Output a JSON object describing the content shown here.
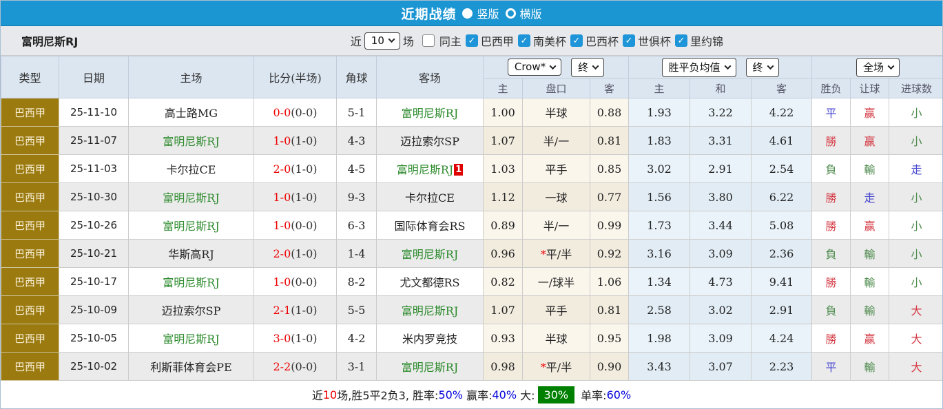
{
  "colors": {
    "topbar_blue": "#1b96d2",
    "checkbox_blue": "#1d95d8",
    "type_gold": "#9b7a10",
    "header_bg": "#dce6f1",
    "team_green": "#2e8b2e",
    "score_red": "#ee0000",
    "result_red": "#d53a44",
    "result_green": "#4e8b4e",
    "result_blue": "#4747cf",
    "big_rate_badge_bg": "#008000"
  },
  "topbar": {
    "title": "近期战绩",
    "vertical_label": "竖版",
    "horizontal_label": "横版",
    "selected": "竖版"
  },
  "filterbar": {
    "team_name": "富明尼斯RJ",
    "near_label": "近",
    "count_value": "10",
    "games_label": "场",
    "same_home_label": "同主",
    "same_home_checked": false,
    "competitions": [
      "巴西甲",
      "南美杯",
      "巴西杯",
      "世俱杯",
      "里约锦"
    ]
  },
  "table": {
    "dropdowns": {
      "company": "Crow*",
      "final1": "终",
      "avg": "胜平负均值",
      "final2": "终",
      "scope": "全场"
    },
    "columns": [
      "类型",
      "日期",
      "主场",
      "比分(半场)",
      "角球",
      "客场"
    ],
    "subcolumns": [
      "主",
      "盘口",
      "客",
      "主",
      "和",
      "客",
      "胜负",
      "让球",
      "进球数"
    ],
    "rows": [
      {
        "type": "巴西甲",
        "date": "25-11-10",
        "home": "高士路MG",
        "home_color": "black",
        "score": "0-0",
        "half": "(0-0)",
        "corners": "5-1",
        "away": "富明尼斯RJ",
        "away_color": "tgreen",
        "away_redcard": "",
        "odds_home": "1.00",
        "handicap_star": "",
        "handicap": "半球",
        "odds_away": "0.88",
        "avg_win": "1.93",
        "avg_draw": "3.22",
        "avg_lose": "4.22",
        "result": "平",
        "result_color": "blue",
        "let_result": "赢",
        "let_color": "red",
        "goals": "小",
        "goals_color": "green"
      },
      {
        "type": "巴西甲",
        "date": "25-11-07",
        "home": "富明尼斯RJ",
        "home_color": "tgreen",
        "score": "1-0",
        "half": "(1-0)",
        "corners": "4-3",
        "away": "迈拉索尔SP",
        "away_color": "black",
        "away_redcard": "",
        "odds_home": "1.07",
        "handicap_star": "",
        "handicap": "半/一",
        "odds_away": "0.81",
        "avg_win": "1.83",
        "avg_draw": "3.31",
        "avg_lose": "4.61",
        "result": "勝",
        "result_color": "red",
        "let_result": "赢",
        "let_color": "red",
        "goals": "小",
        "goals_color": "green"
      },
      {
        "type": "巴西甲",
        "date": "25-11-03",
        "home": "卡尔拉CE",
        "home_color": "black",
        "score": "2-0",
        "half": "(1-0)",
        "corners": "4-5",
        "away": "富明尼斯RJ",
        "away_color": "tgreen",
        "away_redcard": "1",
        "odds_home": "1.03",
        "handicap_star": "",
        "handicap": "平手",
        "odds_away": "0.85",
        "avg_win": "3.02",
        "avg_draw": "2.91",
        "avg_lose": "2.54",
        "result": "負",
        "result_color": "green",
        "let_result": "輸",
        "let_color": "green",
        "goals": "走",
        "goals_color": "blue"
      },
      {
        "type": "巴西甲",
        "date": "25-10-30",
        "home": "富明尼斯RJ",
        "home_color": "tgreen",
        "score": "1-0",
        "half": "(1-0)",
        "corners": "9-3",
        "away": "卡尔拉CE",
        "away_color": "black",
        "away_redcard": "",
        "odds_home": "1.12",
        "handicap_star": "",
        "handicap": "一球",
        "odds_away": "0.77",
        "avg_win": "1.56",
        "avg_draw": "3.80",
        "avg_lose": "6.22",
        "result": "勝",
        "result_color": "red",
        "let_result": "走",
        "let_color": "blue",
        "goals": "小",
        "goals_color": "green"
      },
      {
        "type": "巴西甲",
        "date": "25-10-26",
        "home": "富明尼斯RJ",
        "home_color": "tgreen",
        "score": "1-0",
        "half": "(0-0)",
        "corners": "6-3",
        "away": "国际体育会RS",
        "away_color": "black",
        "away_redcard": "",
        "odds_home": "0.89",
        "handicap_star": "",
        "handicap": "半/一",
        "odds_away": "0.99",
        "avg_win": "1.73",
        "avg_draw": "3.44",
        "avg_lose": "5.08",
        "result": "勝",
        "result_color": "red",
        "let_result": "赢",
        "let_color": "red",
        "goals": "小",
        "goals_color": "green"
      },
      {
        "type": "巴西甲",
        "date": "25-10-21",
        "home": "华斯高RJ",
        "home_color": "black",
        "score": "2-0",
        "half": "(1-0)",
        "corners": "1-4",
        "away": "富明尼斯RJ",
        "away_color": "tgreen",
        "away_redcard": "",
        "odds_home": "0.96",
        "handicap_star": "*",
        "handicap": "平/半",
        "odds_away": "0.92",
        "avg_win": "3.16",
        "avg_draw": "3.09",
        "avg_lose": "2.36",
        "result": "負",
        "result_color": "green",
        "let_result": "輸",
        "let_color": "green",
        "goals": "小",
        "goals_color": "green"
      },
      {
        "type": "巴西甲",
        "date": "25-10-17",
        "home": "富明尼斯RJ",
        "home_color": "tgreen",
        "score": "1-0",
        "half": "(0-0)",
        "corners": "8-2",
        "away": "尤文都德RS",
        "away_color": "black",
        "away_redcard": "",
        "odds_home": "0.82",
        "handicap_star": "",
        "handicap": "一/球半",
        "odds_away": "1.06",
        "avg_win": "1.34",
        "avg_draw": "4.73",
        "avg_lose": "9.41",
        "result": "勝",
        "result_color": "red",
        "let_result": "輸",
        "let_color": "green",
        "goals": "小",
        "goals_color": "green"
      },
      {
        "type": "巴西甲",
        "date": "25-10-09",
        "home": "迈拉索尔SP",
        "home_color": "black",
        "score": "2-1",
        "half": "(1-0)",
        "corners": "5-5",
        "away": "富明尼斯RJ",
        "away_color": "tgreen",
        "away_redcard": "",
        "odds_home": "1.07",
        "handicap_star": "",
        "handicap": "平手",
        "odds_away": "0.81",
        "avg_win": "2.58",
        "avg_draw": "3.02",
        "avg_lose": "2.91",
        "result": "負",
        "result_color": "green",
        "let_result": "輸",
        "let_color": "green",
        "goals": "大",
        "goals_color": "red"
      },
      {
        "type": "巴西甲",
        "date": "25-10-05",
        "home": "富明尼斯RJ",
        "home_color": "tgreen",
        "score": "3-0",
        "half": "(1-0)",
        "corners": "4-2",
        "away": "米内罗竞技",
        "away_color": "black",
        "away_redcard": "",
        "odds_home": "0.93",
        "handicap_star": "",
        "handicap": "半球",
        "odds_away": "0.95",
        "avg_win": "1.98",
        "avg_draw": "3.09",
        "avg_lose": "4.24",
        "result": "勝",
        "result_color": "red",
        "let_result": "赢",
        "let_color": "red",
        "goals": "大",
        "goals_color": "red"
      },
      {
        "type": "巴西甲",
        "date": "25-10-02",
        "home": "利斯菲体育会PE",
        "home_color": "black",
        "score": "2-2",
        "half": "(0-0)",
        "corners": "3-1",
        "away": "富明尼斯RJ",
        "away_color": "tgreen",
        "away_redcard": "",
        "odds_home": "0.98",
        "handicap_star": "*",
        "handicap": "平/半",
        "odds_away": "0.90",
        "avg_win": "3.43",
        "avg_draw": "3.07",
        "avg_lose": "2.23",
        "result": "平",
        "result_color": "blue",
        "let_result": "輸",
        "let_color": "green",
        "goals": "大",
        "goals_color": "red"
      }
    ]
  },
  "footer": {
    "segments": [
      {
        "text": "近",
        "style": "plain"
      },
      {
        "text": "10",
        "style": "red"
      },
      {
        "text": "场,胜5平2负3, 胜率:",
        "style": "plain"
      },
      {
        "text": "50%",
        "style": "blue"
      },
      {
        "text": " 赢率:",
        "style": "plain"
      },
      {
        "text": "40%",
        "style": "blue"
      },
      {
        "text": " 大:",
        "style": "plain"
      },
      {
        "text": "30%",
        "style": "badge"
      },
      {
        "text": " 单率:",
        "style": "plain"
      },
      {
        "text": "60%",
        "style": "blue"
      }
    ]
  }
}
